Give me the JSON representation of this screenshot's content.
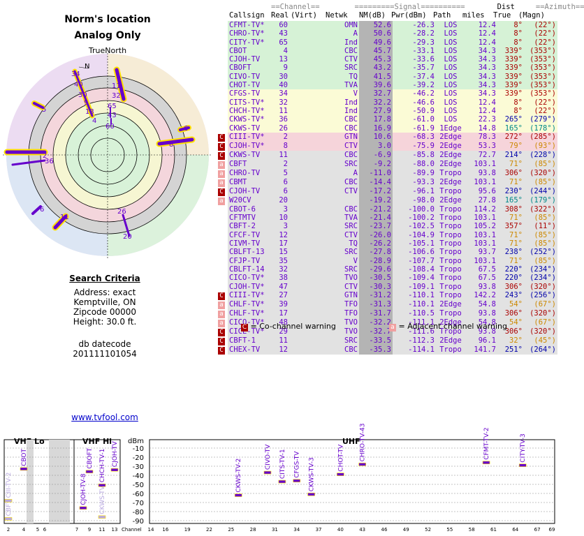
{
  "title": "Norm's location",
  "subtitle": "Analog Only",
  "true_north": "TrueNorth",
  "north_letter": "N",
  "criteria": {
    "heading": "Search Criteria",
    "address": "Address: exact",
    "city": "Kemptville, ON",
    "zip": "Zipcode 00000",
    "height": "Height: 30.0 ft.",
    "db_label": "db datecode",
    "db_code": "201111101054"
  },
  "link": "www.tvfool.com",
  "table_header": {
    "group1": "==Channel==",
    "group2": "=========Signal==========",
    "group3": "Dist",
    "group4": "==Azimuth==",
    "cols": [
      "Callsign",
      "Real",
      "(Virt)",
      "Netwk",
      "NM(dB)",
      "Pwr(dBm)",
      "Path",
      "miles",
      "True",
      "(Magn)"
    ]
  },
  "legend": {
    "co_symbol": "C",
    "co_text": "= Co-channel warning",
    "adj_symbol": "a",
    "adj_text": "= Adjacent channel warning"
  },
  "colors": {
    "band_green": "#d0f0d0",
    "band_yellow": "#fafad0",
    "band_pink": "#f8d8dc",
    "band_gray": "#e0e0e0",
    "text_purple": "#6600cc",
    "nm_bar": "#a0a0a0",
    "co_warn": "#aa0000",
    "adj_warn": "#f0a0a0",
    "az_red": "#aa0000",
    "az_orange": "#cc8800",
    "az_blue": "#0000aa",
    "az_teal": "#008888"
  },
  "stations": [
    {
      "call": "CFMT-TV*",
      "real": "60",
      "virt": "",
      "net": "OMN",
      "nm": "52.6",
      "pwr": "-26.3",
      "path": "LOS",
      "dist": "12.4",
      "az": "8°",
      "mag": "(22°)",
      "band": "green",
      "warn": "",
      "azc": "red"
    },
    {
      "call": "CHRO-TV*",
      "real": "43",
      "virt": "",
      "net": "A",
      "nm": "50.6",
      "pwr": "-28.2",
      "path": "LOS",
      "dist": "12.4",
      "az": "8°",
      "mag": "(22°)",
      "band": "green",
      "warn": "",
      "azc": "red"
    },
    {
      "call": "CITY-TV*",
      "real": "65",
      "virt": "",
      "net": "Ind",
      "nm": "49.6",
      "pwr": "-29.3",
      "path": "LOS",
      "dist": "12.4",
      "az": "8°",
      "mag": "(22°)",
      "band": "green",
      "warn": "",
      "azc": "red"
    },
    {
      "call": "CBOT",
      "real": "4",
      "virt": "",
      "net": "CBC",
      "nm": "45.7",
      "pwr": "-33.1",
      "path": "LOS",
      "dist": "34.3",
      "az": "339°",
      "mag": "(353°)",
      "band": "green",
      "warn": "",
      "azc": "red"
    },
    {
      "call": "CJOH-TV",
      "real": "13",
      "virt": "",
      "net": "CTV",
      "nm": "45.3",
      "pwr": "-33.6",
      "path": "LOS",
      "dist": "34.3",
      "az": "339°",
      "mag": "(353°)",
      "band": "green",
      "warn": "",
      "azc": "red"
    },
    {
      "call": "CBOFT",
      "real": "9",
      "virt": "",
      "net": "SRC",
      "nm": "43.2",
      "pwr": "-35.7",
      "path": "LOS",
      "dist": "34.3",
      "az": "339°",
      "mag": "(353°)",
      "band": "green",
      "warn": "",
      "azc": "red"
    },
    {
      "call": "CIVO-TV",
      "real": "30",
      "virt": "",
      "net": "TQ",
      "nm": "41.5",
      "pwr": "-37.4",
      "path": "LOS",
      "dist": "34.3",
      "az": "339°",
      "mag": "(353°)",
      "band": "green",
      "warn": "",
      "azc": "red"
    },
    {
      "call": "CHOT-TV",
      "real": "40",
      "virt": "",
      "net": "TVA",
      "nm": "39.6",
      "pwr": "-39.2",
      "path": "LOS",
      "dist": "34.3",
      "az": "339°",
      "mag": "(353°)",
      "band": "green",
      "warn": "",
      "azc": "red"
    },
    {
      "call": "CFGS-TV",
      "real": "34",
      "virt": "",
      "net": "V",
      "nm": "32.7",
      "pwr": "-46.2",
      "path": "LOS",
      "dist": "34.3",
      "az": "339°",
      "mag": "(353°)",
      "band": "yellow",
      "warn": "",
      "azc": "red"
    },
    {
      "call": "CITS-TV*",
      "real": "32",
      "virt": "",
      "net": "Ind",
      "nm": "32.2",
      "pwr": "-46.6",
      "path": "LOS",
      "dist": "12.4",
      "az": "8°",
      "mag": "(22°)",
      "band": "yellow",
      "warn": "",
      "azc": "red"
    },
    {
      "call": "CHCH-TV*",
      "real": "11",
      "virt": "",
      "net": "Ind",
      "nm": "27.9",
      "pwr": "-50.9",
      "path": "LOS",
      "dist": "12.4",
      "az": "8°",
      "mag": "(22°)",
      "band": "yellow",
      "warn": "",
      "azc": "red"
    },
    {
      "call": "CKWS-TV*",
      "real": "36",
      "virt": "",
      "net": "CBC",
      "nm": "17.8",
      "pwr": "-61.0",
      "path": "LOS",
      "dist": "22.3",
      "az": "265°",
      "mag": "(279°)",
      "band": "yellow",
      "warn": "",
      "azc": "blue"
    },
    {
      "call": "CKWS-TV",
      "real": "26",
      "virt": "",
      "net": "CBC",
      "nm": "16.9",
      "pwr": "-61.9",
      "path": "1Edge",
      "dist": "14.8",
      "az": "165°",
      "mag": "(178°)",
      "band": "yellow",
      "warn": "",
      "azc": "teal"
    },
    {
      "call": "CIII-TV*",
      "real": "2",
      "virt": "",
      "net": "GTN",
      "nm": "10.6",
      "pwr": "-68.3",
      "path": "2Edge",
      "dist": "78.3",
      "az": "272°",
      "mag": "(285°)",
      "band": "pink",
      "warn": "C",
      "azc": "red"
    },
    {
      "call": "CJOH-TV*",
      "real": "8",
      "virt": "",
      "net": "CTV",
      "nm": "3.0",
      "pwr": "-75.9",
      "path": "2Edge",
      "dist": "53.3",
      "az": "79°",
      "mag": "(93°)",
      "band": "pink",
      "warn": "C",
      "azc": "orange"
    },
    {
      "call": "CKWS-TV",
      "real": "11",
      "virt": "",
      "net": "CBC",
      "nm": "-6.9",
      "pwr": "-85.8",
      "path": "2Edge",
      "dist": "72.7",
      "az": "214°",
      "mag": "(228°)",
      "band": "gray",
      "warn": "C",
      "azc": "blue"
    },
    {
      "call": "CBFT",
      "real": "2",
      "virt": "",
      "net": "SRC",
      "nm": "-9.2",
      "pwr": "-88.0",
      "path": "2Edge",
      "dist": "103.1",
      "az": "71°",
      "mag": "(85°)",
      "band": "gray",
      "warn": "a",
      "azc": "orange"
    },
    {
      "call": "CHRO-TV",
      "real": "5",
      "virt": "",
      "net": "A",
      "nm": "-11.0",
      "pwr": "-89.9",
      "path": "Tropo",
      "dist": "93.8",
      "az": "306°",
      "mag": "(320°)",
      "band": "gray",
      "warn": "a",
      "azc": "red"
    },
    {
      "call": "CBMT",
      "real": "6",
      "virt": "",
      "net": "CBC",
      "nm": "-14.4",
      "pwr": "-93.3",
      "path": "2Edge",
      "dist": "103.1",
      "az": "71°",
      "mag": "(85°)",
      "band": "gray",
      "warn": "a",
      "azc": "orange"
    },
    {
      "call": "CJOH-TV",
      "real": "6",
      "virt": "",
      "net": "CTV",
      "nm": "-17.2",
      "pwr": "-96.1",
      "path": "Tropo",
      "dist": "95.6",
      "az": "230°",
      "mag": "(244°)",
      "band": "gray",
      "warn": "C",
      "azc": "blue"
    },
    {
      "call": "W20CV",
      "real": "20",
      "virt": "",
      "net": "",
      "nm": "-19.2",
      "pwr": "-98.0",
      "path": "2Edge",
      "dist": "27.8",
      "az": "165°",
      "mag": "(179°)",
      "band": "gray",
      "warn": "a",
      "azc": "teal"
    },
    {
      "call": "CBOT-6",
      "real": "3",
      "virt": "",
      "net": "CBC",
      "nm": "-21.2",
      "pwr": "-100.0",
      "path": "Tropo",
      "dist": "114.2",
      "az": "308°",
      "mag": "(322°)",
      "band": "gray",
      "warn": "",
      "azc": "red"
    },
    {
      "call": "CFTMTV",
      "real": "10",
      "virt": "",
      "net": "TVA",
      "nm": "-21.4",
      "pwr": "-100.2",
      "path": "Tropo",
      "dist": "103.1",
      "az": "71°",
      "mag": "(85°)",
      "band": "gray",
      "warn": "",
      "azc": "orange"
    },
    {
      "call": "CBFT-2",
      "real": "3",
      "virt": "",
      "net": "SRC",
      "nm": "-23.7",
      "pwr": "-102.5",
      "path": "Tropo",
      "dist": "105.2",
      "az": "357°",
      "mag": "(11°)",
      "band": "gray",
      "warn": "",
      "azc": "red"
    },
    {
      "call": "CFCF-TV",
      "real": "12",
      "virt": "",
      "net": "CTV",
      "nm": "-26.0",
      "pwr": "-104.9",
      "path": "Tropo",
      "dist": "103.1",
      "az": "71°",
      "mag": "(85°)",
      "band": "gray",
      "warn": "",
      "azc": "orange"
    },
    {
      "call": "CIVM-TV",
      "real": "17",
      "virt": "",
      "net": "TQ",
      "nm": "-26.2",
      "pwr": "-105.1",
      "path": "Tropo",
      "dist": "103.1",
      "az": "71°",
      "mag": "(85°)",
      "band": "gray",
      "warn": "",
      "azc": "orange"
    },
    {
      "call": "CBLFT-13",
      "real": "15",
      "virt": "",
      "net": "SRC",
      "nm": "-27.8",
      "pwr": "-106.6",
      "path": "Tropo",
      "dist": "93.7",
      "az": "238°",
      "mag": "(252°)",
      "band": "gray",
      "warn": "",
      "azc": "blue"
    },
    {
      "call": "CFJP-TV",
      "real": "35",
      "virt": "",
      "net": "V",
      "nm": "-28.9",
      "pwr": "-107.7",
      "path": "Tropo",
      "dist": "103.1",
      "az": "71°",
      "mag": "(85°)",
      "band": "gray",
      "warn": "",
      "azc": "orange"
    },
    {
      "call": "CBLFT-14",
      "real": "32",
      "virt": "",
      "net": "SRC",
      "nm": "-29.6",
      "pwr": "-108.4",
      "path": "Tropo",
      "dist": "67.5",
      "az": "220°",
      "mag": "(234°)",
      "band": "gray",
      "warn": "",
      "azc": "blue"
    },
    {
      "call": "CICO-TV*",
      "real": "38",
      "virt": "",
      "net": "TVO",
      "nm": "-30.5",
      "pwr": "-109.4",
      "path": "Tropo",
      "dist": "67.5",
      "az": "220°",
      "mag": "(234°)",
      "band": "gray",
      "warn": "",
      "azc": "blue"
    },
    {
      "call": "CJOH-TV*",
      "real": "47",
      "virt": "",
      "net": "CTV",
      "nm": "-30.3",
      "pwr": "-109.1",
      "path": "Tropo",
      "dist": "93.8",
      "az": "306°",
      "mag": "(320°)",
      "band": "gray",
      "warn": "",
      "azc": "red"
    },
    {
      "call": "CIII-TV*",
      "real": "27",
      "virt": "",
      "net": "GTN",
      "nm": "-31.2",
      "pwr": "-110.1",
      "path": "Tropo",
      "dist": "142.2",
      "az": "243°",
      "mag": "(256°)",
      "band": "gray",
      "warn": "C",
      "azc": "blue"
    },
    {
      "call": "CHLF-TV*",
      "real": "39",
      "virt": "",
      "net": "TFO",
      "nm": "-31.3",
      "pwr": "-110.1",
      "path": "2Edge",
      "dist": "54.8",
      "az": "54°",
      "mag": "(67°)",
      "band": "gray",
      "warn": "a",
      "azc": "orange"
    },
    {
      "call": "CHLF-TV*",
      "real": "17",
      "virt": "",
      "net": "TFO",
      "nm": "-31.7",
      "pwr": "-110.5",
      "path": "Tropo",
      "dist": "93.8",
      "az": "306°",
      "mag": "(320°)",
      "band": "gray",
      "warn": "a",
      "azc": "red"
    },
    {
      "call": "CICO-TV*",
      "real": "48",
      "virt": "",
      "net": "TVO",
      "nm": "-32.2",
      "pwr": "-111.1",
      "path": "2Edge",
      "dist": "54.8",
      "az": "54°",
      "mag": "(67°)",
      "band": "gray",
      "warn": "a",
      "azc": "orange"
    },
    {
      "call": "CICE-TV*",
      "real": "29",
      "virt": "",
      "net": "TVO",
      "nm": "-32.7",
      "pwr": "-111.6",
      "path": "Tropo",
      "dist": "93.8",
      "az": "306°",
      "mag": "(320°)",
      "band": "gray",
      "warn": "C",
      "azc": "red"
    },
    {
      "call": "CBFT-1",
      "real": "11",
      "virt": "",
      "net": "SRC",
      "nm": "-33.5",
      "pwr": "-112.3",
      "path": "2Edge",
      "dist": "96.1",
      "az": "32°",
      "mag": "(45°)",
      "band": "gray",
      "warn": "C",
      "azc": "orange"
    },
    {
      "call": "CHEX-TV",
      "real": "12",
      "virt": "",
      "net": "CBC",
      "nm": "-35.3",
      "pwr": "-114.1",
      "path": "Tropo",
      "dist": "141.7",
      "az": "251°",
      "mag": "(264°)",
      "band": "gray",
      "warn": "C",
      "azc": "blue"
    }
  ],
  "radar_labels": [
    {
      "t": "34"
    },
    {
      "t": "40"
    },
    {
      "t": "30"
    },
    {
      "t": "9"
    },
    {
      "t": "13"
    },
    {
      "t": "4"
    },
    {
      "t": "11"
    },
    {
      "t": "32"
    },
    {
      "t": "65"
    },
    {
      "t": "43"
    },
    {
      "t": "60"
    },
    {
      "t": "5"
    },
    {
      "t": "6"
    },
    {
      "t": "8"
    },
    {
      "t": "2"
    },
    {
      "t": "36"
    },
    {
      "t": "6"
    },
    {
      "t": "11"
    },
    {
      "t": "26"
    },
    {
      "t": "20"
    }
  ],
  "spectrum": {
    "vhf_lo": "VHF Lo",
    "vhf_hi": "VHF Hi",
    "uhf": "UHF",
    "unit": "dBm",
    "channel_label": "Channel",
    "ylabels": [
      "-10",
      "-20",
      "-30",
      "-40",
      "-50",
      "-60",
      "-70",
      "-80",
      "-90"
    ],
    "lo_ticks": [
      "2",
      "4",
      "5",
      "6"
    ],
    "hi_ticks": [
      "7",
      "9",
      "11",
      "13"
    ],
    "uhf_ticks": [
      "14",
      "16",
      "19",
      "22",
      "25",
      "28",
      "31",
      "34",
      "37",
      "40",
      "43",
      "46",
      "49",
      "52",
      "55",
      "58",
      "61",
      "64",
      "67",
      "69"
    ],
    "markers": [
      {
        "ch": "2",
        "label": "CBFT",
        "pwr": -88,
        "grp": "lo",
        "faint": true
      },
      {
        "ch": "2",
        "label": "CIII-TV-2",
        "pwr": -68,
        "grp": "lo",
        "faint": true
      },
      {
        "ch": "4",
        "label": "CBOT",
        "pwr": -33,
        "grp": "lo",
        "faint": false
      },
      {
        "ch": "8",
        "label": "CJOH-TV-8",
        "pwr": -76,
        "grp": "hi",
        "faint": false
      },
      {
        "ch": "9",
        "label": "CBOFT",
        "pwr": -36,
        "grp": "hi",
        "faint": false
      },
      {
        "ch": "11",
        "label": "CKWS-TV",
        "pwr": -86,
        "grp": "hi",
        "faint": true
      },
      {
        "ch": "11",
        "label": "CHCH-TV-1",
        "pwr": -51,
        "grp": "hi",
        "faint": false
      },
      {
        "ch": "13",
        "label": "CJOH-TV",
        "pwr": -34,
        "grp": "hi",
        "faint": false
      },
      {
        "ch": "26",
        "label": "CKWS-TV-2",
        "pwr": -62,
        "grp": "uhf",
        "faint": false
      },
      {
        "ch": "30",
        "label": "CIVO-TV",
        "pwr": -37,
        "grp": "uhf",
        "faint": false
      },
      {
        "ch": "32",
        "label": "CITS-TV-1",
        "pwr": -47,
        "grp": "uhf",
        "faint": false
      },
      {
        "ch": "34",
        "label": "CFGS-TV",
        "pwr": -46,
        "grp": "uhf",
        "faint": false
      },
      {
        "ch": "36",
        "label": "CKWS-TV-3",
        "pwr": -61,
        "grp": "uhf",
        "faint": false
      },
      {
        "ch": "40",
        "label": "CHOT-TV",
        "pwr": -39,
        "grp": "uhf",
        "faint": false
      },
      {
        "ch": "43",
        "label": "CHRO-TV-43",
        "pwr": -28,
        "grp": "uhf",
        "faint": false
      },
      {
        "ch": "60",
        "label": "CFMT-TV-2",
        "pwr": -26,
        "grp": "uhf",
        "faint": false
      },
      {
        "ch": "65",
        "label": "CITY-TV-3",
        "pwr": -29,
        "grp": "uhf",
        "faint": false
      }
    ]
  },
  "chart_data": {
    "type": "table",
    "title": "Norm's location",
    "subtitle": "Analog Only",
    "columns": [
      "Callsign",
      "Real",
      "(Virt)",
      "Netwk",
      "NM(dB)",
      "Pwr(dBm)",
      "Path",
      "miles",
      "True",
      "(Magn)"
    ],
    "spectrum": {
      "type": "scatter",
      "xlabel": "Channel",
      "ylabel": "dBm",
      "ylim": [
        -95,
        0
      ],
      "points": [
        {
          "x": 2,
          "y": -88
        },
        {
          "x": 2,
          "y": -68
        },
        {
          "x": 4,
          "y": -33
        },
        {
          "x": 8,
          "y": -76
        },
        {
          "x": 9,
          "y": -36
        },
        {
          "x": 11,
          "y": -86
        },
        {
          "x": 11,
          "y": -51
        },
        {
          "x": 13,
          "y": -34
        },
        {
          "x": 26,
          "y": -62
        },
        {
          "x": 30,
          "y": -37
        },
        {
          "x": 32,
          "y": -47
        },
        {
          "x": 34,
          "y": -46
        },
        {
          "x": 36,
          "y": -61
        },
        {
          "x": 40,
          "y": -39
        },
        {
          "x": 43,
          "y": -28
        },
        {
          "x": 60,
          "y": -26
        },
        {
          "x": 65,
          "y": -29
        }
      ]
    }
  }
}
